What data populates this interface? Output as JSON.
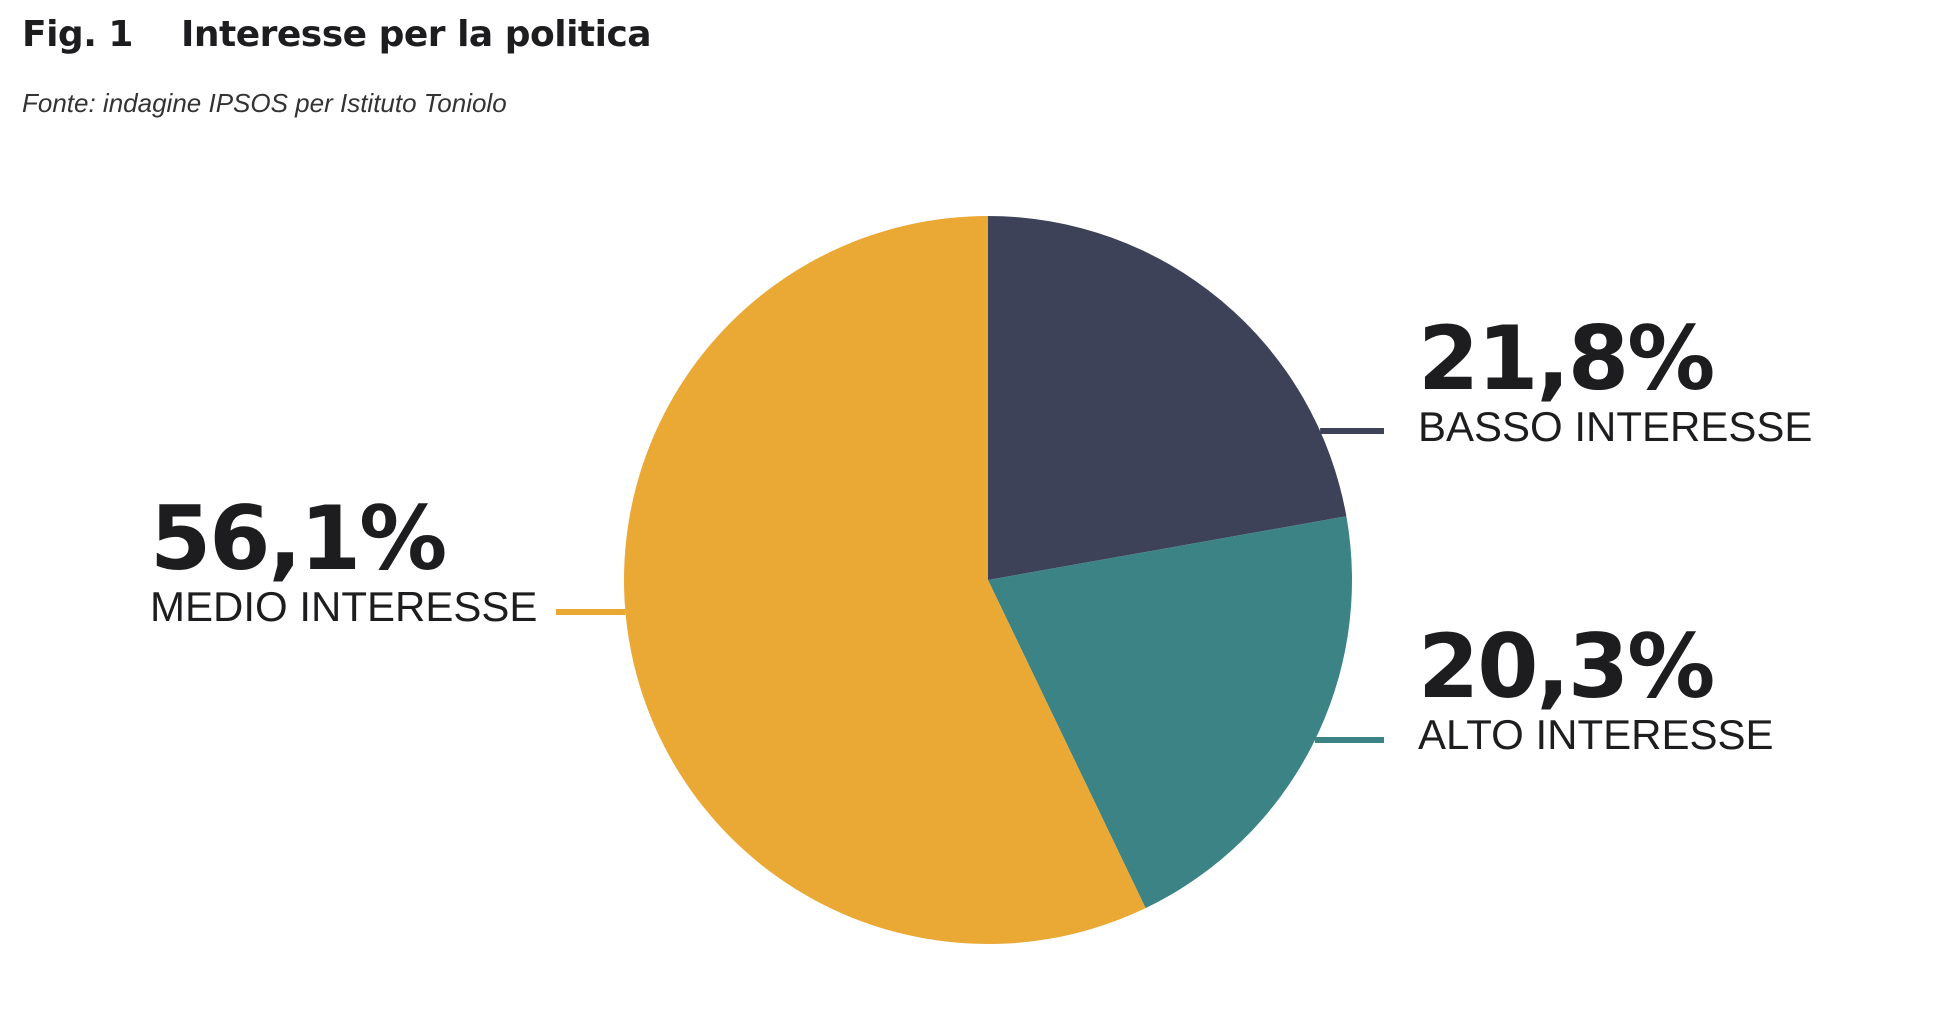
{
  "figure": {
    "number": "Fig. 1",
    "title": "Interesse per la politica",
    "source": "Fonte: indagine IPSOS per Istituto Toniolo"
  },
  "chart_data": {
    "type": "pie",
    "start_angle_deg": 0,
    "direction": "clockwise",
    "slices": [
      {
        "label": "BASSO INTERESSE",
        "value": 21.8,
        "value_label": "21,8%",
        "color": "#3d4259"
      },
      {
        "label": "ALTO INTERESSE",
        "value": 20.3,
        "value_label": "20,3%",
        "color": "#3b8385"
      },
      {
        "label": "MEDIO INTERESSE",
        "value": 56.1,
        "value_label": "56,1%",
        "color": "#eaa934"
      }
    ]
  }
}
